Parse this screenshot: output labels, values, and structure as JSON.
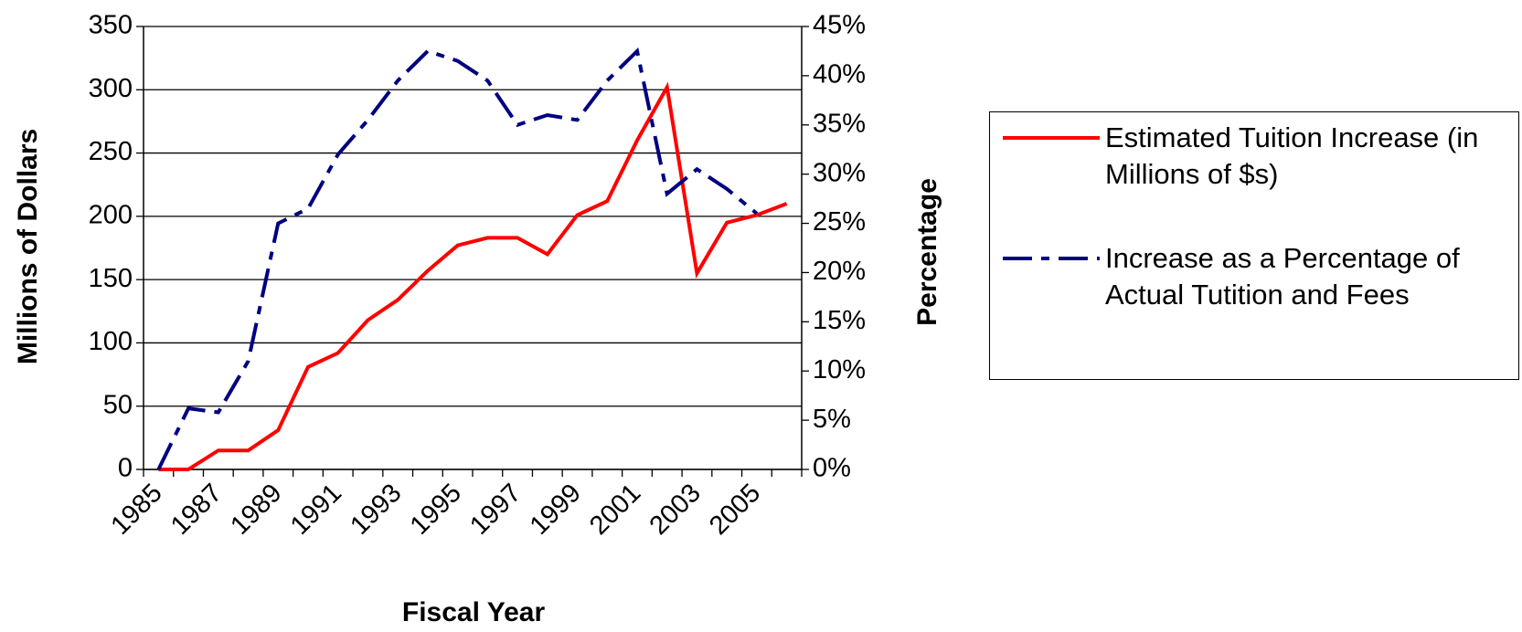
{
  "chart_data": {
    "type": "line",
    "x_label": "Fiscal Year",
    "y_label": "Millions of Dollars",
    "y2_label": "Percentage",
    "categories": [
      "1985",
      null,
      "1987",
      null,
      "1989",
      null,
      "1991",
      null,
      "1993",
      null,
      "1995",
      null,
      "1997",
      null,
      "1999",
      null,
      "2001",
      null,
      "2003",
      null,
      "2005",
      null
    ],
    "ylim": [
      0,
      350
    ],
    "yticks": [
      0,
      50,
      100,
      150,
      200,
      250,
      300,
      350
    ],
    "y2lim": [
      0,
      45
    ],
    "y2ticks": [
      {
        "value": 0,
        "label": "0%"
      },
      {
        "value": 5,
        "label": "5%"
      },
      {
        "value": 10,
        "label": "10%"
      },
      {
        "value": 15,
        "label": "15%"
      },
      {
        "value": 20,
        "label": "20%"
      },
      {
        "value": 25,
        "label": "25%"
      },
      {
        "value": 30,
        "label": "30%"
      },
      {
        "value": 35,
        "label": "35%"
      },
      {
        "value": 40,
        "label": "40%"
      },
      {
        "value": 45,
        "label": "45%"
      }
    ],
    "grid": true,
    "series": [
      {
        "name": "Estimated Tuition Increase (in Millions of $s)",
        "color": "#ff0000",
        "dash": "solid",
        "values": [
          0,
          0,
          15,
          15,
          31,
          81,
          92,
          118,
          134,
          157,
          177,
          183,
          183,
          170,
          201,
          212,
          260,
          302,
          155,
          195,
          201,
          210
        ]
      },
      {
        "name": "Increase as a Percentage of Actual Tutition and Fees",
        "color": "#000080",
        "dash": "dashdot",
        "axis": "y2",
        "values": [
          0,
          6.2,
          5.8,
          11,
          25,
          26.5,
          32,
          35.5,
          39.5,
          42.5,
          41.5,
          39.5,
          35,
          36,
          35.5,
          39.5,
          42.5,
          28,
          30.5,
          28.5,
          26,
          null
        ]
      }
    ]
  }
}
